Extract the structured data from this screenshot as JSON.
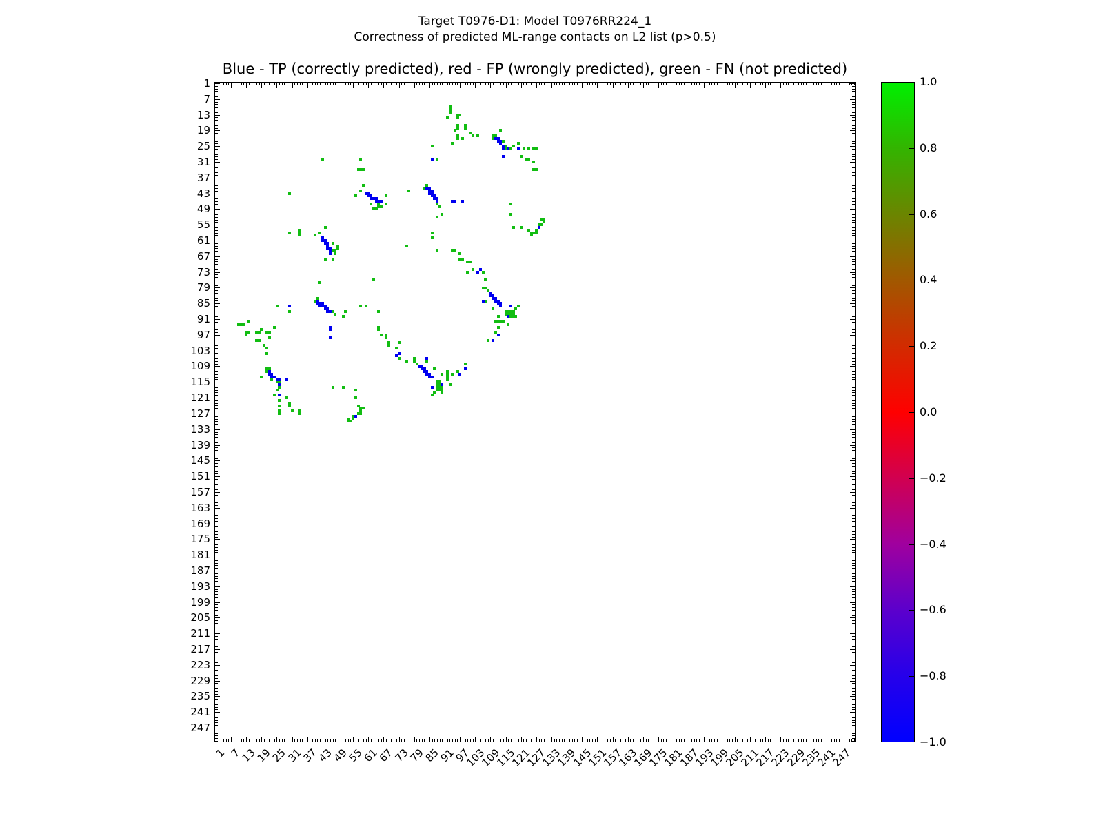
{
  "figure": {
    "background": "#ffffff",
    "suptitle_line1": "Target T0976-D1: Model T0976RR224_1",
    "suptitle_line2_prefix": "Correctness of predicted ML-range contacts on L",
    "suptitle_line2_overlined": "2",
    "suptitle_line2_suffix": " list (p>0.5)"
  },
  "chart_data": {
    "type": "heatmap",
    "title": "Blue - TP (correctly predicted), red - FP (wrongly predicted), green - FN (not predicted)",
    "xlabel": "",
    "ylabel": "",
    "axis_range": [
      0.5,
      252.5
    ],
    "n_residues": 252,
    "y_inverted": true,
    "grid": false,
    "symmetric": true,
    "x_tick_labels": [
      "1",
      "7",
      "13",
      "19",
      "25",
      "31",
      "37",
      "43",
      "49",
      "55",
      "61",
      "67",
      "73",
      "79",
      "85",
      "91",
      "97",
      "103",
      "109",
      "115",
      "121",
      "127",
      "133",
      "139",
      "145",
      "151",
      "157",
      "163",
      "169",
      "175",
      "181",
      "187",
      "193",
      "199",
      "205",
      "211",
      "217",
      "223",
      "229",
      "235",
      "241",
      "247"
    ],
    "y_tick_labels": [
      "1",
      "7",
      "13",
      "19",
      "25",
      "31",
      "37",
      "43",
      "49",
      "55",
      "61",
      "67",
      "73",
      "79",
      "85",
      "91",
      "97",
      "103",
      "109",
      "115",
      "121",
      "127",
      "133",
      "139",
      "145",
      "151",
      "157",
      "163",
      "169",
      "175",
      "181",
      "187",
      "193",
      "199",
      "205",
      "211",
      "217",
      "223",
      "229",
      "235",
      "241",
      "247"
    ],
    "legend_colors": {
      "tp_blue": "#0000f0",
      "fp_red": "#e00000",
      "fn_green": "#12bd12"
    },
    "cells_tp": [
      [
        86,
        30
      ],
      [
        111,
        22
      ],
      [
        112,
        22
      ],
      [
        112,
        23
      ],
      [
        113,
        23
      ],
      [
        113,
        24
      ],
      [
        114,
        25
      ],
      [
        114,
        26
      ],
      [
        116,
        26
      ],
      [
        120,
        26
      ],
      [
        114,
        29
      ],
      [
        84,
        41
      ],
      [
        85,
        41
      ],
      [
        85,
        42
      ],
      [
        86,
        42
      ],
      [
        85,
        43
      ],
      [
        86,
        43
      ],
      [
        86,
        44
      ],
      [
        87,
        44
      ],
      [
        87,
        45
      ],
      [
        88,
        45
      ],
      [
        88,
        46
      ],
      [
        94,
        46
      ],
      [
        95,
        46
      ],
      [
        98,
        46
      ],
      [
        60,
        43
      ],
      [
        61,
        43
      ],
      [
        61,
        44
      ],
      [
        62,
        44
      ],
      [
        62,
        45
      ],
      [
        63,
        45
      ],
      [
        64,
        45
      ],
      [
        64,
        46
      ],
      [
        65,
        46
      ],
      [
        66,
        46
      ],
      [
        128,
        56
      ],
      [
        105,
        72
      ],
      [
        104,
        73
      ],
      [
        109,
        81
      ],
      [
        109,
        82
      ],
      [
        110,
        82
      ],
      [
        110,
        83
      ],
      [
        111,
        83
      ],
      [
        111,
        84
      ],
      [
        112,
        84
      ],
      [
        112,
        85
      ],
      [
        113,
        85
      ],
      [
        113,
        86
      ],
      [
        106,
        84
      ],
      [
        117,
        86
      ],
      [
        116,
        90
      ],
      [
        112,
        97
      ],
      [
        110,
        99
      ]
    ],
    "cells_fn": [
      [
        93,
        10
      ],
      [
        93,
        11
      ],
      [
        93,
        12
      ],
      [
        92,
        14
      ],
      [
        96,
        13
      ],
      [
        97,
        13
      ],
      [
        96,
        14
      ],
      [
        96,
        17
      ],
      [
        96,
        18
      ],
      [
        99,
        17
      ],
      [
        99,
        18
      ],
      [
        95,
        19
      ],
      [
        101,
        20
      ],
      [
        102,
        21
      ],
      [
        96,
        21
      ],
      [
        96,
        22
      ],
      [
        98,
        22
      ],
      [
        94,
        24
      ],
      [
        86,
        25
      ],
      [
        88,
        30
      ],
      [
        113,
        19
      ],
      [
        104,
        21
      ],
      [
        110,
        21
      ],
      [
        111,
        21
      ],
      [
        110,
        22
      ],
      [
        114,
        23
      ],
      [
        115,
        25
      ],
      [
        115,
        26
      ],
      [
        117,
        26
      ],
      [
        118,
        25
      ],
      [
        120,
        24
      ],
      [
        122,
        26
      ],
      [
        124,
        26
      ],
      [
        126,
        26
      ],
      [
        127,
        26
      ],
      [
        121,
        29
      ],
      [
        123,
        30
      ],
      [
        124,
        30
      ],
      [
        126,
        31
      ],
      [
        126,
        34
      ],
      [
        127,
        34
      ],
      [
        43,
        30
      ],
      [
        58,
        30
      ],
      [
        57,
        34
      ],
      [
        58,
        34
      ],
      [
        59,
        34
      ],
      [
        84,
        40
      ],
      [
        83,
        41
      ],
      [
        77,
        42
      ],
      [
        88,
        47
      ],
      [
        89,
        48
      ],
      [
        90,
        51
      ],
      [
        88,
        52
      ],
      [
        58,
        42
      ],
      [
        59,
        40
      ],
      [
        56,
        44
      ],
      [
        68,
        44
      ],
      [
        62,
        47
      ],
      [
        65,
        47
      ],
      [
        65,
        48
      ],
      [
        63,
        49
      ],
      [
        64,
        49
      ],
      [
        66,
        48
      ],
      [
        68,
        47
      ],
      [
        117,
        47
      ],
      [
        117,
        51
      ],
      [
        118,
        56
      ],
      [
        121,
        56
      ],
      [
        124,
        57
      ],
      [
        125,
        58
      ],
      [
        126,
        58
      ],
      [
        127,
        57
      ],
      [
        127,
        58
      ],
      [
        128,
        55
      ],
      [
        129,
        53
      ],
      [
        129,
        55
      ],
      [
        130,
        53
      ],
      [
        130,
        54
      ],
      [
        125,
        59
      ],
      [
        86,
        58
      ],
      [
        86,
        60
      ],
      [
        76,
        63
      ],
      [
        88,
        65
      ],
      [
        94,
        65
      ],
      [
        95,
        65
      ],
      [
        97,
        66
      ],
      [
        97,
        68
      ],
      [
        98,
        68
      ],
      [
        100,
        69
      ],
      [
        101,
        69
      ],
      [
        102,
        72
      ],
      [
        100,
        73
      ],
      [
        106,
        73
      ],
      [
        107,
        76
      ],
      [
        106,
        79
      ],
      [
        107,
        79
      ],
      [
        108,
        80
      ],
      [
        107,
        84
      ],
      [
        110,
        87
      ],
      [
        120,
        86
      ],
      [
        115,
        88
      ],
      [
        116,
        88
      ],
      [
        117,
        88
      ],
      [
        118,
        88
      ],
      [
        115,
        89
      ],
      [
        116,
        89
      ],
      [
        117,
        89
      ],
      [
        118,
        89
      ],
      [
        117,
        90
      ],
      [
        118,
        90
      ],
      [
        119,
        90
      ],
      [
        112,
        90
      ],
      [
        119,
        87
      ],
      [
        111,
        92
      ],
      [
        112,
        92
      ],
      [
        113,
        92
      ],
      [
        114,
        92
      ],
      [
        116,
        93
      ],
      [
        112,
        94
      ],
      [
        111,
        96
      ],
      [
        108,
        99
      ]
    ],
    "colorbar": {
      "tick_labels": [
        "1.0",
        "0.8",
        "0.6",
        "0.4",
        "0.2",
        "0.0",
        "−0.2",
        "−0.4",
        "−0.6",
        "−0.8",
        "−1.0"
      ],
      "vmin": -1.0,
      "vmax": 1.0,
      "gradient_stops": [
        [
          "0%",
          "#00f000"
        ],
        [
          "10%",
          "#33b400"
        ],
        [
          "20%",
          "#6b8500"
        ],
        [
          "30%",
          "#a15800"
        ],
        [
          "40%",
          "#d22b00"
        ],
        [
          "50%",
          "#ff0000"
        ],
        [
          "60%",
          "#d10050"
        ],
        [
          "70%",
          "#a0009e"
        ],
        [
          "80%",
          "#5c00cc"
        ],
        [
          "90%",
          "#2600ea"
        ],
        [
          "100%",
          "#0000ff"
        ]
      ]
    }
  }
}
